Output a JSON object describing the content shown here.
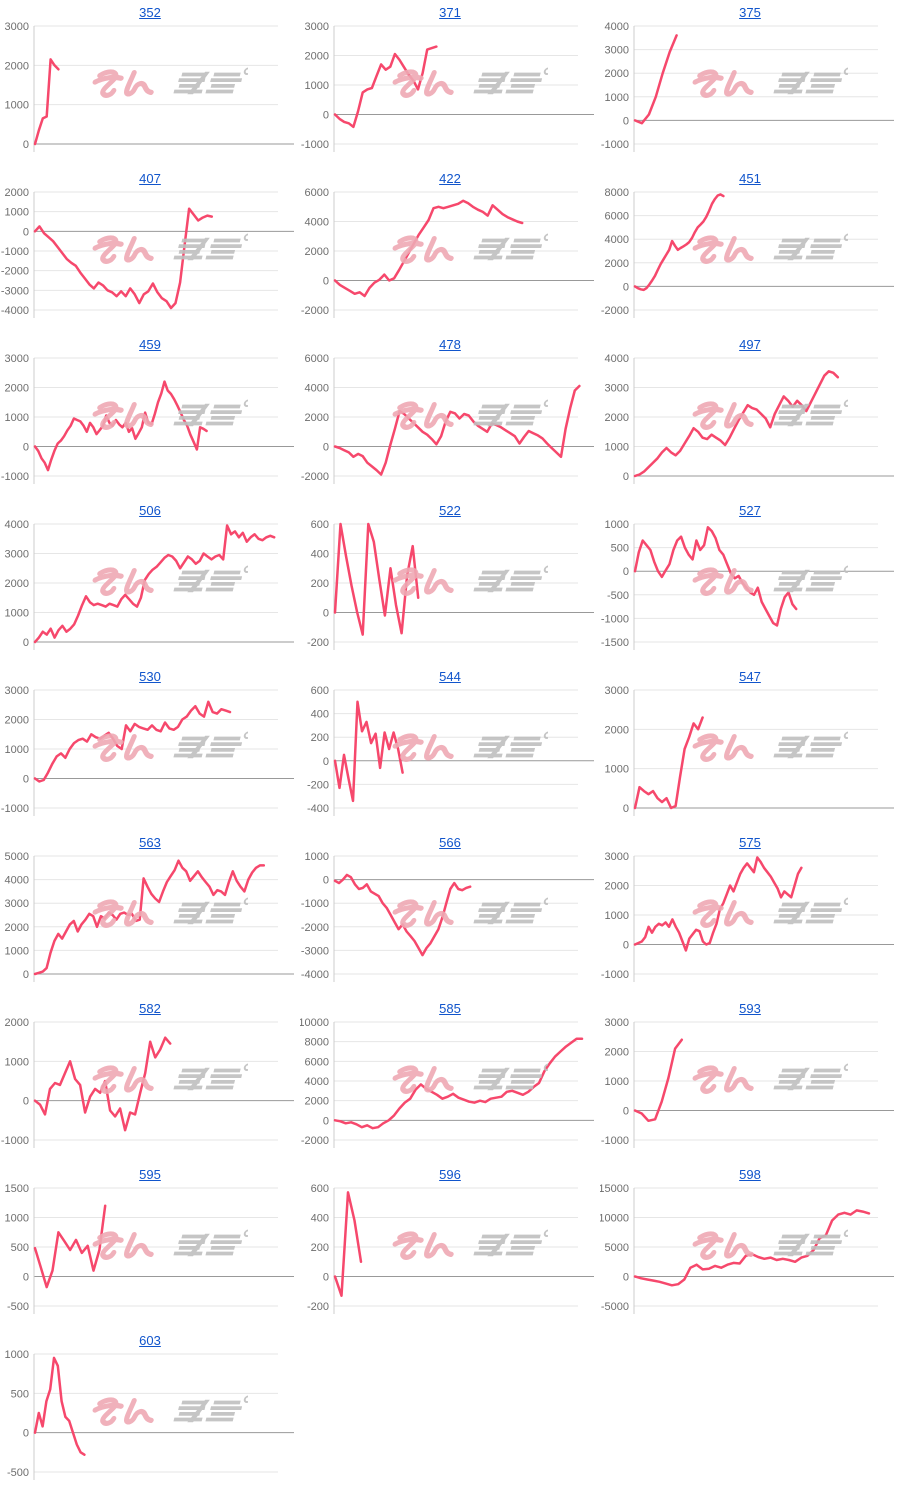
{
  "page": {
    "background": "#ffffff"
  },
  "colors": {
    "line": "#f6486c",
    "title_link": "#1155cc",
    "tick_label": "#6e6e6e",
    "gridline": "#e6e6e6",
    "zero_line": "#999999",
    "axis_line": "#cccccc",
    "watermark_pink": "#efa9b4",
    "watermark_gray": "#bfbfbf"
  },
  "watermark": {
    "text": "みんレポ",
    "pink_part": "みん",
    "gray_part": "レポ"
  },
  "chart_data": [
    {
      "type": "line",
      "title": "352",
      "yticks": [
        3000,
        2000,
        1000,
        0
      ],
      "span": 0.09,
      "values": [
        0,
        350,
        650,
        700,
        2150,
        2000,
        1900
      ]
    },
    {
      "type": "line",
      "title": "371",
      "yticks": [
        3000,
        2000,
        1000,
        0,
        -1000
      ],
      "span": 0.39,
      "values": [
        0,
        -150,
        -250,
        -300,
        -420,
        100,
        750,
        850,
        900,
        1300,
        1700,
        1520,
        1620,
        2050,
        1850,
        1600,
        1350,
        1150,
        850,
        1400,
        2200,
        2250,
        2300
      ]
    },
    {
      "type": "line",
      "title": "375",
      "yticks": [
        4000,
        3000,
        2000,
        1000,
        0,
        -1000
      ],
      "span": 0.16,
      "values": [
        0,
        -120,
        250,
        1000,
        2000,
        2900,
        3600
      ]
    },
    {
      "type": "line",
      "title": "407",
      "yticks": [
        2000,
        1000,
        0,
        -1000,
        -2000,
        -3000,
        -4000
      ],
      "span": 0.68,
      "values": [
        0,
        250,
        -100,
        -300,
        -500,
        -800,
        -1100,
        -1400,
        -1600,
        -1750,
        -2100,
        -2400,
        -2700,
        -2900,
        -2600,
        -2750,
        -3000,
        -3100,
        -3300,
        -3050,
        -3300,
        -2900,
        -3200,
        -3650,
        -3200,
        -3050,
        -2650,
        -3100,
        -3400,
        -3550,
        -3900,
        -3650,
        -2600,
        -700,
        1150,
        850,
        550,
        700,
        800,
        750
      ]
    },
    {
      "type": "line",
      "title": "422",
      "yticks": [
        6000,
        4000,
        2000,
        0,
        -2000
      ],
      "span": 0.72,
      "values": [
        0,
        -300,
        -500,
        -700,
        -900,
        -800,
        -1050,
        -500,
        -150,
        50,
        400,
        0,
        150,
        700,
        1300,
        1900,
        2500,
        3100,
        3600,
        4100,
        4900,
        5000,
        4900,
        5000,
        5100,
        5200,
        5400,
        5250,
        5000,
        4800,
        4650,
        4400,
        5100,
        4800,
        4500,
        4300,
        4150,
        4000,
        3900
      ]
    },
    {
      "type": "line",
      "title": "451",
      "yticks": [
        8000,
        6000,
        4000,
        2000,
        0,
        -2000
      ],
      "span": 0.34,
      "values": [
        0,
        -150,
        -250,
        -300,
        -150,
        150,
        500,
        900,
        1400,
        1900,
        2300,
        2700,
        3100,
        3850,
        3450,
        3100,
        3250,
        3400,
        3550,
        3750,
        4100,
        4600,
        5000,
        5250,
        5500,
        5900,
        6400,
        7000,
        7400,
        7700,
        7800,
        7650
      ]
    },
    {
      "type": "line",
      "title": "459",
      "yticks": [
        3000,
        2000,
        1000,
        0,
        -1000
      ],
      "span": 0.66,
      "values": [
        0,
        -150,
        -400,
        -550,
        -800,
        -450,
        -150,
        100,
        200,
        350,
        550,
        700,
        950,
        900,
        850,
        700,
        500,
        800,
        650,
        420,
        560,
        700,
        1050,
        800,
        700,
        900,
        750,
        650,
        800,
        500,
        620,
        260,
        450,
        650,
        1150,
        800,
        760,
        1100,
        1500,
        1800,
        2200,
        1900,
        1780,
        1600,
        1380,
        1150,
        900,
        700,
        400,
        160,
        -100,
        650,
        600,
        530
      ]
    },
    {
      "type": "line",
      "title": "478",
      "yticks": [
        6000,
        4000,
        2000,
        0,
        -2000
      ],
      "span": 0.94,
      "values": [
        0,
        -100,
        -250,
        -400,
        -700,
        -500,
        -650,
        -1100,
        -1350,
        -1600,
        -1900,
        -1100,
        100,
        1200,
        2400,
        2200,
        1900,
        1600,
        1300,
        1000,
        800,
        500,
        150,
        700,
        1700,
        2350,
        2250,
        1900,
        2200,
        2100,
        1700,
        1400,
        1200,
        1000,
        1550,
        1450,
        1300,
        1100,
        900,
        700,
        200,
        650,
        1050,
        900,
        750,
        550,
        200,
        -100,
        -400,
        -700,
        1200,
        2600,
        3800,
        4100
      ]
    },
    {
      "type": "line",
      "title": "497",
      "yticks": [
        4000,
        3000,
        2000,
        1000,
        0
      ],
      "span": 0.78,
      "values": [
        0,
        50,
        150,
        300,
        450,
        600,
        800,
        950,
        800,
        700,
        850,
        1100,
        1350,
        1620,
        1500,
        1300,
        1250,
        1400,
        1300,
        1200,
        1050,
        1300,
        1600,
        1900,
        2150,
        2400,
        2300,
        2250,
        2100,
        1950,
        1650,
        2100,
        2400,
        2700,
        2550,
        2350,
        2550,
        2400,
        2200,
        2500,
        2800,
        3100,
        3400,
        3550,
        3500,
        3350
      ]
    },
    {
      "type": "line",
      "title": "506",
      "yticks": [
        4000,
        3000,
        2000,
        1000,
        0
      ],
      "span": 0.92,
      "values": [
        0,
        150,
        350,
        250,
        450,
        150,
        400,
        550,
        350,
        450,
        600,
        900,
        1250,
        1550,
        1350,
        1250,
        1300,
        1250,
        1200,
        1300,
        1250,
        1200,
        1450,
        1600,
        1450,
        1300,
        1200,
        1500,
        2100,
        2300,
        2450,
        2550,
        2700,
        2850,
        2950,
        2900,
        2750,
        2500,
        2700,
        2900,
        2800,
        2650,
        2750,
        3000,
        2900,
        2800,
        2900,
        2950,
        2800,
        3950,
        3650,
        3750,
        3550,
        3700,
        3400,
        3550,
        3650,
        3500,
        3450,
        3550,
        3600,
        3550
      ]
    },
    {
      "type": "line",
      "title": "522",
      "yticks": [
        600,
        400,
        200,
        0,
        -200
      ],
      "span": 0.32,
      "values": [
        0,
        600,
        380,
        180,
        0,
        -150,
        600,
        480,
        220,
        -20,
        300,
        50,
        -140,
        250,
        450,
        100
      ]
    },
    {
      "type": "line",
      "title": "527",
      "yticks": [
        1000,
        500,
        0,
        -500,
        -1000,
        -1500
      ],
      "span": 0.62,
      "values": [
        0,
        400,
        650,
        550,
        450,
        200,
        0,
        -120,
        20,
        150,
        450,
        650,
        730,
        500,
        350,
        250,
        650,
        450,
        550,
        930,
        850,
        700,
        450,
        350,
        150,
        -50,
        -150,
        -100,
        -250,
        -350,
        -450,
        -500,
        -350,
        -650,
        -800,
        -950,
        -1100,
        -1150,
        -800,
        -550,
        -450,
        -700,
        -800
      ]
    },
    {
      "type": "line",
      "title": "530",
      "yticks": [
        3000,
        2000,
        1000,
        0,
        -1000
      ],
      "span": 0.75,
      "values": [
        0,
        -100,
        -50,
        200,
        500,
        750,
        850,
        700,
        1000,
        1200,
        1300,
        1350,
        1250,
        1500,
        1400,
        1350,
        1450,
        1550,
        1350,
        1100,
        1000,
        1800,
        1600,
        1850,
        1750,
        1700,
        1650,
        1800,
        1650,
        1600,
        1900,
        1700,
        1650,
        1750,
        2000,
        2100,
        2300,
        2450,
        2200,
        2100,
        2600,
        2250,
        2200,
        2350,
        2300,
        2250
      ]
    },
    {
      "type": "line",
      "title": "544",
      "yticks": [
        600,
        400,
        200,
        0,
        -200,
        -400
      ],
      "span": 0.26,
      "values": [
        0,
        -230,
        50,
        -150,
        -340,
        500,
        250,
        330,
        150,
        230,
        -60,
        240,
        100,
        240,
        100,
        -100
      ]
    },
    {
      "type": "line",
      "title": "547",
      "yticks": [
        3000,
        2000,
        1000,
        0
      ],
      "span": 0.26,
      "values": [
        0,
        530,
        430,
        350,
        430,
        250,
        150,
        250,
        0,
        50,
        800,
        1500,
        1800,
        2150,
        2000,
        2300
      ]
    },
    {
      "type": "line",
      "title": "563",
      "yticks": [
        5000,
        4000,
        3000,
        2000,
        1000,
        0
      ],
      "span": 0.88,
      "values": [
        0,
        50,
        100,
        250,
        900,
        1400,
        1700,
        1500,
        1800,
        2100,
        2250,
        1800,
        2100,
        2300,
        2550,
        2450,
        2000,
        2450,
        2350,
        2600,
        2500,
        2300,
        2550,
        2600,
        2500,
        2550,
        2250,
        2300,
        4050,
        3700,
        3400,
        3200,
        3050,
        3500,
        3900,
        4150,
        4400,
        4800,
        4500,
        4350,
        3950,
        4150,
        4350,
        4100,
        3900,
        3700,
        3350,
        3550,
        3500,
        3350,
        3900,
        4350,
        3950,
        3700,
        3500,
        4000,
        4300,
        4500,
        4600,
        4600
      ]
    },
    {
      "type": "line",
      "title": "566",
      "yticks": [
        1000,
        0,
        -1000,
        -2000,
        -3000,
        -4000
      ],
      "span": 0.52,
      "values": [
        -50,
        -150,
        0,
        200,
        100,
        -200,
        -400,
        -350,
        -200,
        -500,
        -600,
        -700,
        -1000,
        -1200,
        -1500,
        -1800,
        -2100,
        -1900,
        -2200,
        -2400,
        -2600,
        -2900,
        -3200,
        -2900,
        -2700,
        -2400,
        -2100,
        -1600,
        -1000,
        -400,
        -150,
        -400,
        -450,
        -350,
        -300
      ]
    },
    {
      "type": "line",
      "title": "575",
      "yticks": [
        3000,
        2000,
        1000,
        0,
        -1000
      ],
      "span": 0.64,
      "values": [
        0,
        50,
        100,
        250,
        600,
        400,
        600,
        700,
        650,
        750,
        600,
        850,
        600,
        400,
        100,
        -200,
        200,
        350,
        500,
        450,
        100,
        0,
        50,
        400,
        700,
        1200,
        1400,
        1700,
        2000,
        1800,
        2100,
        2400,
        2600,
        2750,
        2600,
        2450,
        2950,
        2800,
        2600,
        2450,
        2300,
        2100,
        1900,
        1600,
        1800,
        1700,
        1600,
        2000,
        2400,
        2600
      ]
    },
    {
      "type": "line",
      "title": "582",
      "yticks": [
        2000,
        1000,
        0,
        -1000
      ],
      "span": 0.52,
      "values": [
        0,
        -100,
        -350,
        300,
        450,
        400,
        700,
        1000,
        550,
        400,
        -300,
        100,
        300,
        200,
        500,
        -250,
        -400,
        -200,
        -750,
        -300,
        -350,
        200,
        700,
        1500,
        1100,
        1300,
        1600,
        1450
      ]
    },
    {
      "type": "line",
      "title": "585",
      "yticks": [
        10000,
        8000,
        6000,
        4000,
        2000,
        0,
        -2000
      ],
      "span": 0.95,
      "values": [
        0,
        -100,
        -300,
        -200,
        -400,
        -700,
        -500,
        -800,
        -700,
        -300,
        0,
        500,
        1200,
        1800,
        2200,
        3100,
        3650,
        3200,
        2900,
        2600,
        2200,
        2400,
        2700,
        2300,
        2100,
        1900,
        1800,
        2000,
        1850,
        2200,
        2300,
        2400,
        2900,
        3000,
        2800,
        2600,
        2900,
        3400,
        3800,
        5000,
        5800,
        6500,
        7000,
        7500,
        7900,
        8300,
        8300
      ]
    },
    {
      "type": "line",
      "title": "593",
      "yticks": [
        3000,
        2000,
        1000,
        0,
        -1000
      ],
      "span": 0.18,
      "values": [
        0,
        -100,
        -350,
        -300,
        300,
        1100,
        2100,
        2400
      ]
    },
    {
      "type": "line",
      "title": "595",
      "yticks": [
        1500,
        1000,
        500,
        0,
        -500
      ],
      "span": 0.27,
      "values": [
        480,
        150,
        -180,
        100,
        750,
        600,
        450,
        620,
        400,
        520,
        100,
        450,
        1200
      ]
    },
    {
      "type": "line",
      "title": "596",
      "yticks": [
        600,
        400,
        200,
        0,
        -200
      ],
      "span": 0.1,
      "values": [
        0,
        -130,
        570,
        380,
        100
      ]
    },
    {
      "type": "line",
      "title": "598",
      "yticks": [
        15000,
        10000,
        5000,
        0,
        -5000
      ],
      "span": 0.9,
      "values": [
        0,
        -300,
        -500,
        -700,
        -900,
        -1200,
        -1500,
        -1300,
        -500,
        1500,
        2000,
        1200,
        1300,
        1800,
        1500,
        2000,
        2300,
        2200,
        3500,
        3800,
        3300,
        3000,
        3200,
        2800,
        3000,
        2800,
        2500,
        3200,
        3500,
        4500,
        6500,
        7000,
        9500,
        10500,
        10800,
        10500,
        11200,
        11000,
        10700
      ]
    },
    {
      "type": "line",
      "title": "603",
      "yticks": [
        1000,
        500,
        0,
        -500
      ],
      "span": 0.19,
      "values": [
        0,
        250,
        80,
        400,
        550,
        950,
        850,
        400,
        200,
        150,
        0,
        -150,
        -250,
        -280
      ]
    }
  ]
}
